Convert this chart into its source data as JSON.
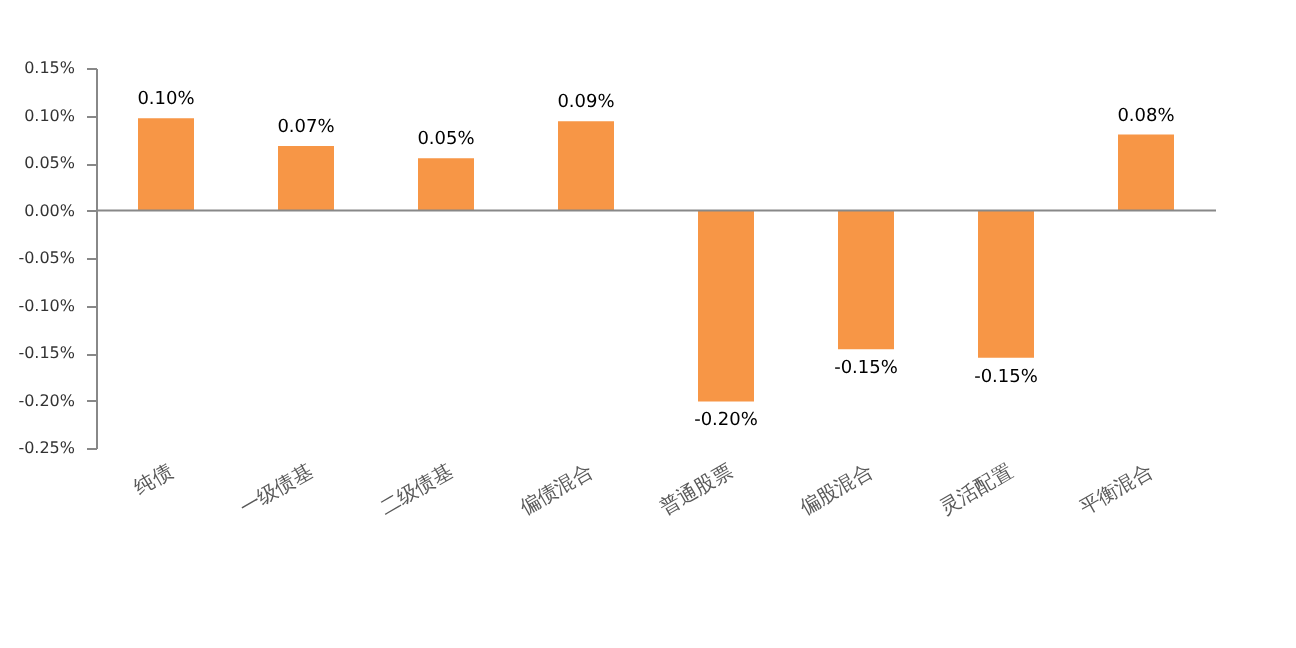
{
  "chart_data": {
    "type": "bar",
    "categories": [
      "纯债",
      "一级债基",
      "二级债基",
      "偏债混合",
      "普通股票",
      "偏股混合",
      "灵活配置",
      "平衡混合"
    ],
    "values": [
      0.097,
      0.068,
      0.055,
      0.094,
      -0.201,
      -0.146,
      -0.155,
      0.08
    ],
    "value_labels": [
      "0.10%",
      "0.07%",
      "0.05%",
      "0.09%",
      "-0.20%",
      "-0.15%",
      "-0.15%",
      "0.08%"
    ],
    "color": "#f79646",
    "ylim": [
      -0.25,
      0.15
    ],
    "yticks": [
      {
        "value": -0.25,
        "label": "-0.25%"
      },
      {
        "value": -0.2,
        "label": "-0.20%"
      },
      {
        "value": -0.15,
        "label": "-0.15%"
      },
      {
        "value": -0.1,
        "label": "-0.10%"
      },
      {
        "value": -0.05,
        "label": "-0.05%"
      },
      {
        "value": 0,
        "label": "0.00%"
      },
      {
        "value": 0.05,
        "label": "0.05%"
      },
      {
        "value": 0.1,
        "label": "0.10%"
      },
      {
        "value": 0.15,
        "label": "0.15%"
      }
    ],
    "relative": false
  }
}
